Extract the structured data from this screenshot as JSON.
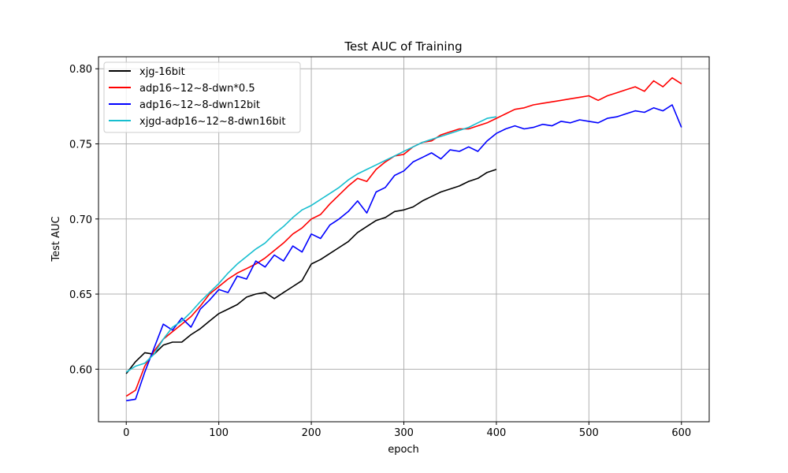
{
  "chart_data": {
    "type": "line",
    "title": "Test AUC of Training",
    "xlabel": "epoch",
    "ylabel": "Test AUC",
    "xlim": [
      -30,
      630
    ],
    "ylim": [
      0.565,
      0.808
    ],
    "xticks": [
      0,
      100,
      200,
      300,
      400,
      500,
      600
    ],
    "yticks": [
      0.6,
      0.65,
      0.7,
      0.75,
      0.8
    ],
    "ytick_labels": [
      "0.60",
      "0.65",
      "0.70",
      "0.75",
      "0.80"
    ],
    "grid": true,
    "legend_position": "top-left",
    "series": [
      {
        "name": "xjg-16bit",
        "color": "#000000",
        "x": [
          0,
          10,
          20,
          30,
          40,
          50,
          60,
          70,
          80,
          90,
          100,
          110,
          120,
          130,
          140,
          150,
          160,
          170,
          180,
          190,
          200,
          210,
          220,
          230,
          240,
          250,
          260,
          270,
          280,
          290,
          300,
          310,
          320,
          330,
          340,
          350,
          360,
          370,
          380,
          390,
          400
        ],
        "y": [
          0.597,
          0.605,
          0.611,
          0.61,
          0.616,
          0.618,
          0.618,
          0.623,
          0.627,
          0.632,
          0.637,
          0.64,
          0.643,
          0.648,
          0.65,
          0.651,
          0.647,
          0.651,
          0.655,
          0.659,
          0.67,
          0.673,
          0.677,
          0.681,
          0.685,
          0.691,
          0.695,
          0.699,
          0.701,
          0.705,
          0.706,
          0.708,
          0.712,
          0.715,
          0.718,
          0.72,
          0.722,
          0.725,
          0.727,
          0.731,
          0.733
        ]
      },
      {
        "name": "adp16~12~8-dwn*0.5",
        "color": "#ff0000",
        "x": [
          0,
          10,
          20,
          30,
          40,
          50,
          60,
          70,
          80,
          90,
          100,
          110,
          120,
          130,
          140,
          150,
          160,
          170,
          180,
          190,
          200,
          210,
          220,
          230,
          240,
          250,
          260,
          270,
          280,
          290,
          300,
          310,
          320,
          330,
          340,
          350,
          360,
          370,
          380,
          390,
          400,
          410,
          420,
          430,
          440,
          450,
          460,
          470,
          480,
          490,
          500,
          510,
          520,
          530,
          540,
          550,
          560,
          570,
          580,
          590,
          600
        ],
        "y": [
          0.582,
          0.586,
          0.602,
          0.612,
          0.62,
          0.625,
          0.63,
          0.635,
          0.642,
          0.65,
          0.655,
          0.66,
          0.664,
          0.667,
          0.67,
          0.674,
          0.679,
          0.684,
          0.69,
          0.694,
          0.7,
          0.703,
          0.71,
          0.716,
          0.722,
          0.727,
          0.725,
          0.733,
          0.738,
          0.742,
          0.743,
          0.748,
          0.751,
          0.752,
          0.756,
          0.758,
          0.76,
          0.76,
          0.762,
          0.764,
          0.767,
          0.77,
          0.773,
          0.774,
          0.776,
          0.777,
          0.778,
          0.779,
          0.78,
          0.781,
          0.782,
          0.779,
          0.782,
          0.784,
          0.786,
          0.788,
          0.785,
          0.792,
          0.788,
          0.794,
          0.79
        ]
      },
      {
        "name": "adp16~12~8-dwn12bit",
        "color": "#0000ff",
        "x": [
          0,
          10,
          20,
          30,
          40,
          50,
          60,
          70,
          80,
          90,
          100,
          110,
          120,
          130,
          140,
          150,
          160,
          170,
          180,
          190,
          200,
          210,
          220,
          230,
          240,
          250,
          260,
          270,
          280,
          290,
          300,
          310,
          320,
          330,
          340,
          350,
          360,
          370,
          380,
          390,
          400,
          410,
          420,
          430,
          440,
          450,
          460,
          470,
          480,
          490,
          500,
          510,
          520,
          530,
          540,
          550,
          560,
          570,
          580,
          590,
          600
        ],
        "y": [
          0.579,
          0.58,
          0.598,
          0.614,
          0.63,
          0.626,
          0.634,
          0.628,
          0.64,
          0.646,
          0.653,
          0.651,
          0.662,
          0.66,
          0.672,
          0.668,
          0.676,
          0.672,
          0.682,
          0.678,
          0.69,
          0.687,
          0.696,
          0.7,
          0.705,
          0.712,
          0.704,
          0.718,
          0.721,
          0.729,
          0.732,
          0.738,
          0.741,
          0.744,
          0.74,
          0.746,
          0.745,
          0.748,
          0.745,
          0.752,
          0.757,
          0.76,
          0.762,
          0.76,
          0.761,
          0.763,
          0.762,
          0.765,
          0.764,
          0.766,
          0.765,
          0.764,
          0.767,
          0.768,
          0.77,
          0.772,
          0.771,
          0.774,
          0.772,
          0.776,
          0.761
        ]
      },
      {
        "name": "xjgd-adp16~12~8-dwn16bit",
        "color": "#17becf",
        "x": [
          0,
          10,
          20,
          30,
          40,
          50,
          60,
          70,
          80,
          90,
          100,
          110,
          120,
          130,
          140,
          150,
          160,
          170,
          180,
          190,
          200,
          210,
          220,
          230,
          240,
          250,
          260,
          270,
          280,
          290,
          300,
          310,
          320,
          330,
          340,
          350,
          360,
          370,
          380,
          390,
          400
        ],
        "y": [
          0.598,
          0.602,
          0.604,
          0.61,
          0.62,
          0.628,
          0.632,
          0.638,
          0.645,
          0.651,
          0.657,
          0.664,
          0.67,
          0.675,
          0.68,
          0.684,
          0.69,
          0.695,
          0.701,
          0.706,
          0.709,
          0.713,
          0.717,
          0.721,
          0.726,
          0.73,
          0.733,
          0.736,
          0.739,
          0.742,
          0.745,
          0.748,
          0.751,
          0.753,
          0.755,
          0.757,
          0.759,
          0.761,
          0.764,
          0.767,
          0.768
        ]
      }
    ]
  }
}
